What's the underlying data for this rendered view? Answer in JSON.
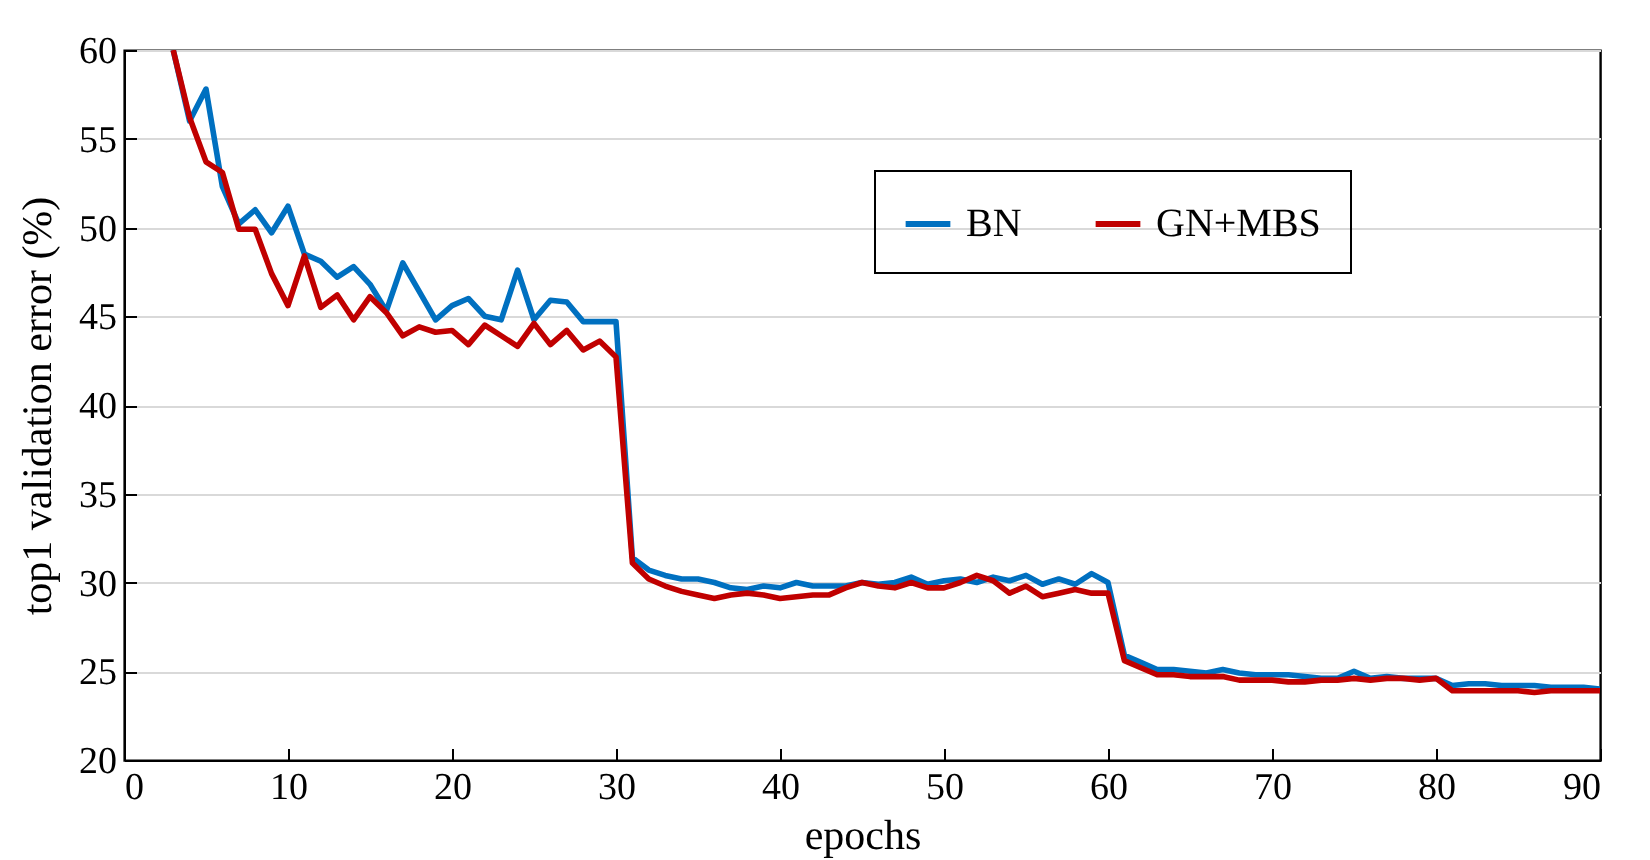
{
  "chart_data": {
    "type": "line",
    "xlabel": "epochs",
    "ylabel": "top1 validation error (%)",
    "x": [
      3,
      4,
      5,
      6,
      7,
      8,
      9,
      10,
      11,
      12,
      13,
      14,
      15,
      16,
      17,
      18,
      19,
      20,
      21,
      22,
      23,
      24,
      25,
      26,
      27,
      28,
      29,
      30,
      31,
      32,
      33,
      34,
      35,
      36,
      37,
      38,
      39,
      40,
      41,
      42,
      43,
      44,
      45,
      46,
      47,
      48,
      49,
      50,
      51,
      52,
      53,
      54,
      55,
      56,
      57,
      58,
      59,
      60,
      61,
      62,
      63,
      64,
      65,
      66,
      67,
      68,
      69,
      70,
      71,
      72,
      73,
      74,
      75,
      76,
      77,
      78,
      79,
      80,
      81,
      82,
      83,
      84,
      85,
      86,
      87,
      88,
      89,
      90
    ],
    "series": [
      {
        "name": "BN",
        "color": "#0070c0",
        "values": [
          60,
          56,
          57.8,
          52.3,
          50.2,
          51,
          49.7,
          51.2,
          48.5,
          48.1,
          47.2,
          47.8,
          46.8,
          45.3,
          48,
          46.4,
          44.8,
          45.6,
          46,
          45,
          44.8,
          47.6,
          44.8,
          45.9,
          45.8,
          44.7,
          44.7,
          44.7,
          31.4,
          30.7,
          30.4,
          30.2,
          30.2,
          30,
          29.7,
          29.6,
          29.8,
          29.7,
          30,
          29.8,
          29.8,
          29.8,
          30,
          29.9,
          30,
          30.3,
          29.9,
          30.1,
          30.2,
          30,
          30.3,
          30.1,
          30.4,
          29.9,
          30.2,
          29.9,
          30.5,
          30,
          25.9,
          25.5,
          25.1,
          25.1,
          25,
          24.9,
          25.1,
          24.9,
          24.8,
          24.8,
          24.8,
          24.7,
          24.6,
          24.6,
          25,
          24.6,
          24.7,
          24.6,
          24.6,
          24.6,
          24.2,
          24.3,
          24.3,
          24.2,
          24.2,
          24.2,
          24.1,
          24.1,
          24.1,
          24
        ]
      },
      {
        "name": "GN+MBS",
        "color": "#c00000",
        "values": [
          60,
          56.2,
          53.7,
          53.1,
          49.9,
          49.9,
          47.4,
          45.6,
          48.4,
          45.5,
          46.2,
          44.8,
          46.1,
          45.2,
          43.9,
          44.4,
          44.1,
          44.2,
          43.4,
          44.5,
          43.9,
          43.3,
          44.6,
          43.4,
          44.2,
          43.1,
          43.6,
          42.7,
          31.1,
          30.2,
          29.8,
          29.5,
          29.3,
          29.1,
          29.3,
          29.4,
          29.3,
          29.1,
          29.2,
          29.3,
          29.3,
          29.7,
          30,
          29.8,
          29.7,
          30,
          29.7,
          29.7,
          30,
          30.4,
          30.1,
          29.4,
          29.8,
          29.2,
          29.4,
          29.6,
          29.4,
          29.4,
          25.6,
          25.2,
          24.8,
          24.8,
          24.7,
          24.7,
          24.7,
          24.5,
          24.5,
          24.5,
          24.4,
          24.4,
          24.5,
          24.5,
          24.6,
          24.5,
          24.6,
          24.6,
          24.5,
          24.6,
          23.9,
          23.9,
          23.9,
          23.9,
          23.9,
          23.8,
          23.9,
          23.9,
          23.9,
          23.9
        ]
      }
    ],
    "xlim": [
      0,
      90
    ],
    "xticks": [
      0,
      10,
      20,
      30,
      40,
      50,
      60,
      70,
      80,
      90
    ],
    "ylim": [
      20,
      60
    ],
    "yticks": [
      20,
      25,
      30,
      35,
      40,
      45,
      50,
      55,
      60
    ],
    "grid": "y",
    "legend": "top right",
    "marker": "none",
    "line_style": "solid"
  }
}
